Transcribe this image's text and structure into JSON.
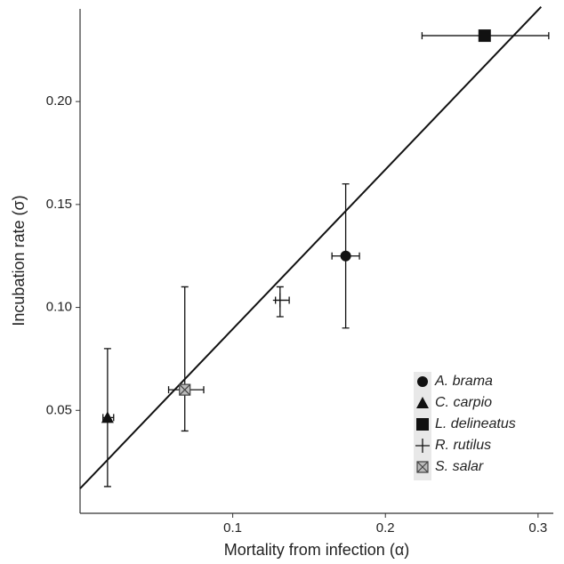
{
  "chart_data": {
    "type": "scatter",
    "xlabel": "Mortality from infection (α)",
    "ylabel": "Incubation rate (σ)",
    "xlim": [
      0,
      0.31
    ],
    "ylim": [
      0,
      0.245
    ],
    "xticks": [
      0.1,
      0.2,
      0.3
    ],
    "yticks": [
      {
        "value": 0.05,
        "label": "0.05"
      },
      {
        "value": 0.1,
        "label": "0.10"
      },
      {
        "value": 0.15,
        "label": "0.15"
      },
      {
        "value": 0.2,
        "label": "0.20"
      }
    ],
    "color": "#111111",
    "legend": "bottom-right",
    "fit_line": {
      "x": [
        0,
        0.302
      ],
      "y": [
        0.012,
        0.246
      ]
    },
    "series": [
      {
        "name": "A. brama",
        "marker": "circle",
        "x": 0.174,
        "y": 0.125,
        "x_low": 0.165,
        "x_high": 0.183,
        "y_low": 0.09,
        "y_high": 0.16
      },
      {
        "name": "C. carpio",
        "marker": "triangle",
        "x": 0.018,
        "y": 0.0465,
        "x_low": 0.015,
        "x_high": 0.022,
        "y_low": 0.013,
        "y_high": 0.08
      },
      {
        "name": "L. delineatus",
        "marker": "square",
        "x": 0.265,
        "y": 0.232,
        "x_low": 0.224,
        "x_high": 0.307
      },
      {
        "name": "R. rutilus",
        "marker": "plus",
        "x": 0.131,
        "y": 0.1035,
        "x_low": 0.128,
        "x_high": 0.137,
        "y_low": 0.0955,
        "y_high": 0.11
      },
      {
        "name": "S. salar",
        "marker": "boxx",
        "x": 0.0686,
        "y": 0.06,
        "x_low": 0.058,
        "x_high": 0.081,
        "y_low": 0.04,
        "y_high": 0.11
      }
    ]
  }
}
